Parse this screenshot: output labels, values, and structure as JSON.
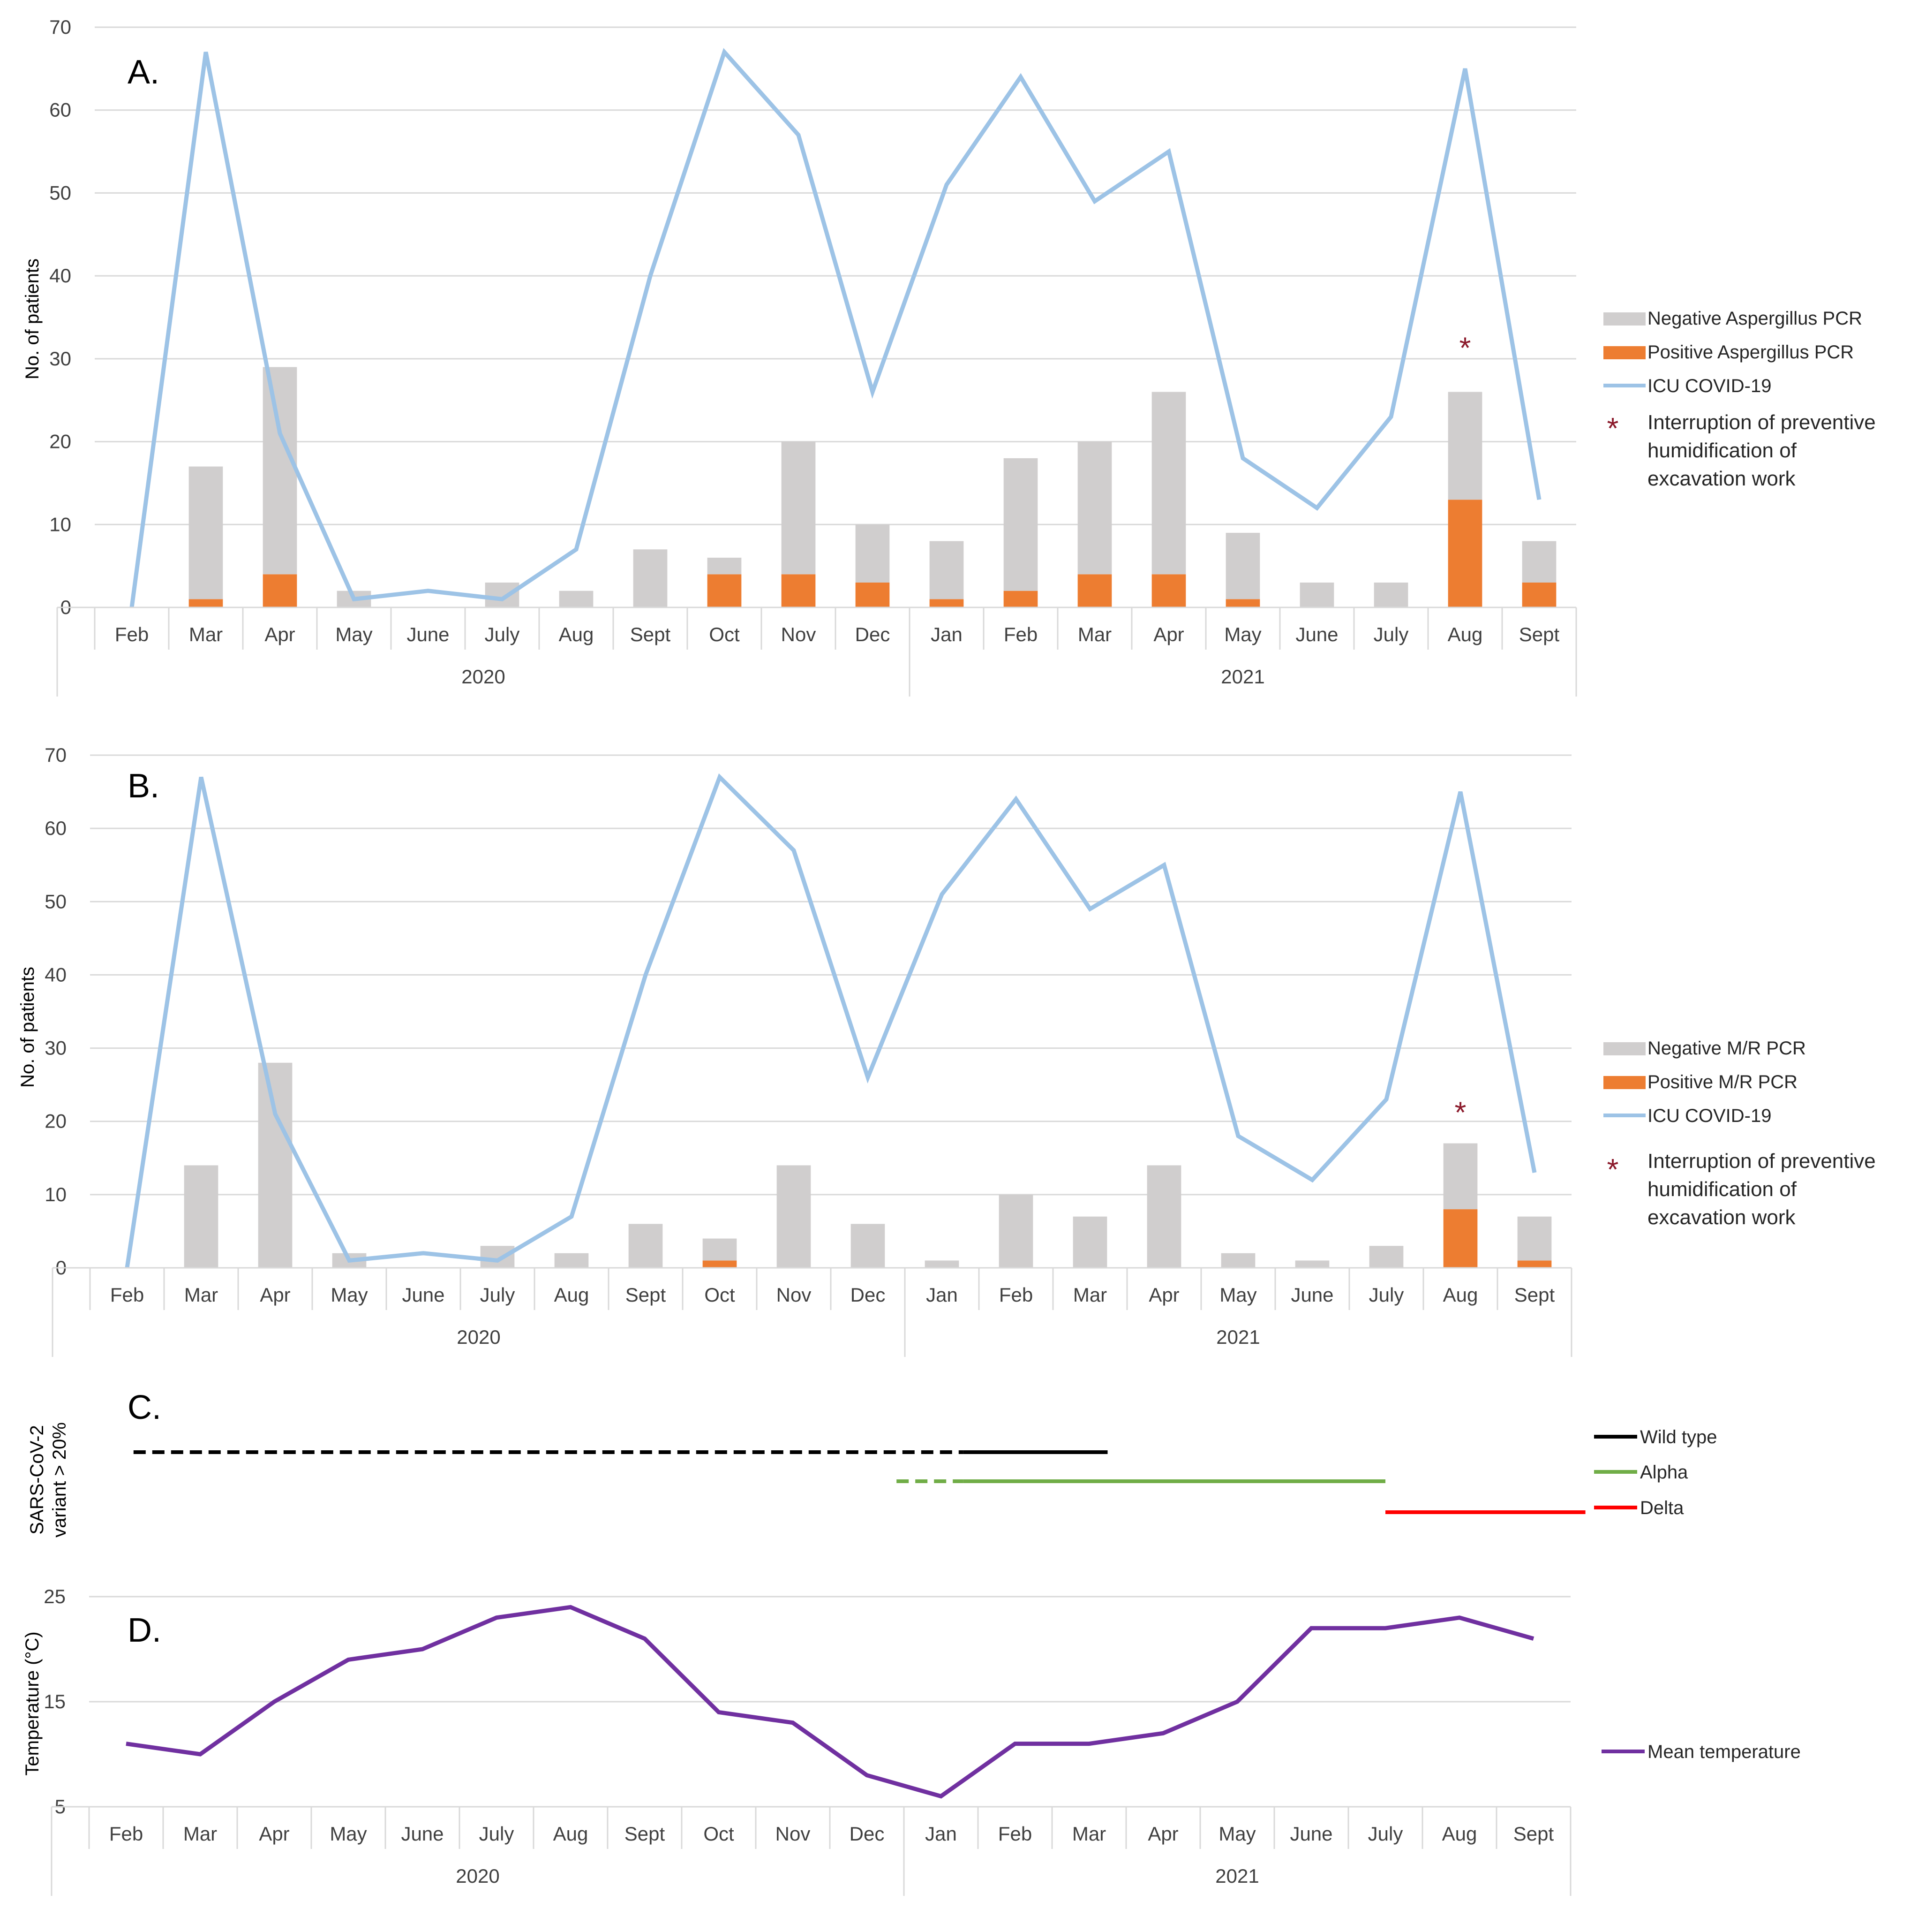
{
  "months": [
    "Feb",
    "Mar",
    "Apr",
    "May",
    "June",
    "July",
    "Aug",
    "Sept",
    "Oct",
    "Nov",
    "Dec",
    "Jan",
    "Feb",
    "Mar",
    "Apr",
    "May",
    "June",
    "July",
    "Aug",
    "Sept"
  ],
  "years": [
    "2020",
    "2021"
  ],
  "colors": {
    "negative": "#d0cece",
    "positive": "#ed7d31",
    "icu": "#9dc3e6",
    "wild": "#000000",
    "alpha": "#70ad47",
    "delta": "#ff0000",
    "temp": "#7030a0",
    "star": "#8b1a2b",
    "grid": "#d9d9d9"
  },
  "chart_data": [
    {
      "panel": "A.",
      "type": "bar",
      "stacked": true,
      "ylabel": "No. of patients",
      "ylim": [
        0,
        70
      ],
      "yticks": [
        0,
        10,
        20,
        30,
        40,
        50,
        60,
        70
      ],
      "series": [
        {
          "name": "Negative Aspergillus PCR",
          "values": [
            0,
            16,
            25,
            2,
            0,
            3,
            2,
            7,
            2,
            16,
            7,
            7,
            16,
            16,
            22,
            8,
            3,
            3,
            13,
            5
          ]
        },
        {
          "name": "Positive Aspergillus PCR",
          "values": [
            0,
            1,
            4,
            0,
            0,
            0,
            0,
            0,
            4,
            4,
            3,
            1,
            2,
            4,
            4,
            1,
            0,
            0,
            13,
            3
          ]
        },
        {
          "name": "ICU COVID-19",
          "type": "line",
          "values": [
            0,
            67,
            21,
            1,
            2,
            1,
            7,
            40,
            67,
            57,
            26,
            51,
            64,
            49,
            55,
            18,
            12,
            23,
            65,
            13
          ]
        }
      ],
      "annotation": {
        "symbol": "*",
        "category_index": 18,
        "y": 32
      },
      "legend": [
        "Negative Aspergillus PCR",
        "Positive Aspergillus PCR",
        "ICU COVID-19"
      ],
      "legend_star": "*",
      "legend_note_lines": [
        "Interruption of preventive",
        "humidification of",
        "excavation work"
      ]
    },
    {
      "panel": "B.",
      "type": "bar",
      "stacked": true,
      "ylabel": "No. of patients",
      "ylim": [
        0,
        70
      ],
      "yticks": [
        0,
        10,
        20,
        30,
        40,
        50,
        60,
        70
      ],
      "series": [
        {
          "name": "Negative M/R PCR",
          "values": [
            0,
            14,
            28,
            2,
            0,
            3,
            2,
            6,
            3,
            14,
            6,
            1,
            10,
            7,
            14,
            2,
            1,
            3,
            9,
            6
          ]
        },
        {
          "name": "Positive M/R PCR",
          "values": [
            0,
            0,
            0,
            0,
            0,
            0,
            0,
            0,
            1,
            0,
            0,
            0,
            0,
            0,
            0,
            0,
            0,
            0,
            8,
            1
          ]
        },
        {
          "name": "ICU COVID-19",
          "type": "line",
          "values": [
            0,
            67,
            21,
            1,
            2,
            1,
            7,
            40,
            67,
            57,
            26,
            51,
            64,
            49,
            55,
            18,
            12,
            23,
            65,
            13
          ]
        }
      ],
      "annotation": {
        "symbol": "*",
        "category_index": 18,
        "y": 22
      },
      "legend": [
        "Negative M/R PCR",
        "Positive M/R PCR",
        "ICU COVID-19"
      ],
      "legend_star": "*",
      "legend_note_lines": [
        "Interruption of preventive",
        "humidification of",
        "excavation work"
      ]
    },
    {
      "panel": "C.",
      "type": "line",
      "ylabel_lines": [
        "SARS-CoV-2",
        "variant > 20%"
      ],
      "series": [
        {
          "name": "Wild type",
          "segments": [
            {
              "from": 0.6,
              "to": 11.8,
              "style": "dashed"
            },
            {
              "from": 11.8,
              "to": 13.75,
              "style": "solid"
            }
          ]
        },
        {
          "name": "Alpha",
          "segments": [
            {
              "from": 10.9,
              "to": 11.8,
              "style": "dashed"
            },
            {
              "from": 11.8,
              "to": 17.5,
              "style": "solid"
            }
          ]
        },
        {
          "name": "Delta",
          "segments": [
            {
              "from": 17.5,
              "to": 20.2,
              "style": "solid"
            }
          ]
        }
      ],
      "legend": [
        "Wild type",
        "Alpha",
        "Delta"
      ]
    },
    {
      "panel": "D.",
      "type": "line",
      "ylabel": "Temperature (°C)",
      "ylim": [
        5,
        25
      ],
      "yticks": [
        5,
        15,
        25
      ],
      "series": [
        {
          "name": "Mean temperature",
          "values": [
            11,
            10,
            15,
            19,
            20,
            23,
            24,
            21,
            14,
            13,
            8,
            6,
            11,
            11,
            12,
            15,
            22,
            22,
            23,
            21
          ]
        }
      ],
      "legend": [
        "Mean temperature"
      ]
    }
  ]
}
